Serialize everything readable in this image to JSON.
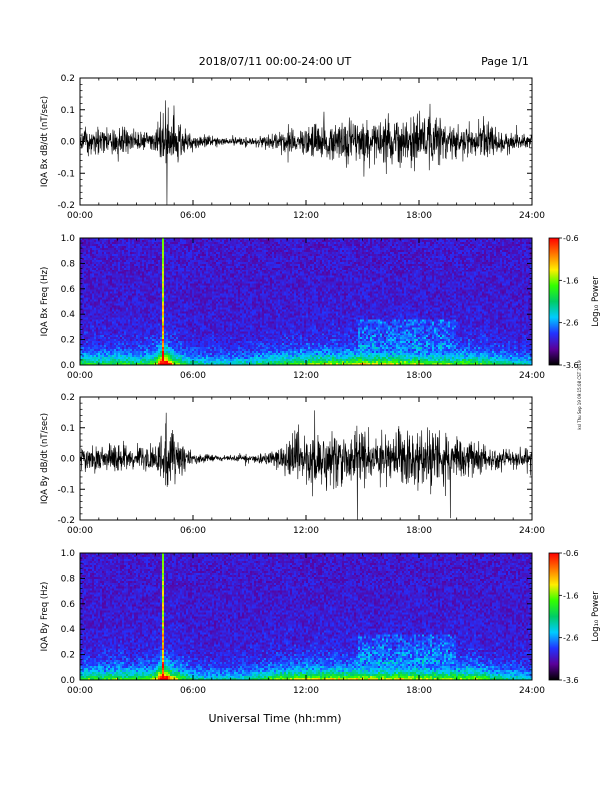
{
  "header": {
    "title": "2018/07/11  00:00-24:00 UT",
    "page": "Page 1/1"
  },
  "footer": {
    "xlabel": "Universal Time (hh:mm)",
    "timestamp": "ksl Thu Sep 19 09:15:08 CST 2019"
  },
  "colors": {
    "trace": "#000000",
    "spectrogram_background": "#000000",
    "colorbar_stops": [
      "#000000",
      "#5a0099",
      "#2233ff",
      "#00ccff",
      "#00cc66",
      "#33ff00",
      "#ffee00",
      "#ff7700",
      "#ff0000"
    ]
  },
  "chart_data": [
    {
      "type": "line",
      "id": "bx",
      "ylabel": "IQA Bx dB/dt (nT/sec)",
      "xlim": [
        0,
        24
      ],
      "ylim": [
        -0.2,
        0.2
      ],
      "x_ticks": [
        "00:00",
        "06:00",
        "12:00",
        "18:00",
        "24:00"
      ],
      "y_ticks": [
        "-0.2",
        "-0.1",
        "0.0",
        "0.1",
        "0.2"
      ],
      "envelope": {
        "x": [
          0,
          1,
          2,
          3,
          4,
          4.6,
          4.8,
          5.3,
          6,
          7,
          8,
          9,
          10,
          10.5,
          11,
          12,
          12.5,
          13,
          13.5,
          14,
          14.5,
          15,
          15.5,
          16,
          17,
          18,
          18.5,
          19,
          20,
          20.5,
          21,
          21.5,
          22,
          23,
          24
        ],
        "amplitude": [
          0.07,
          0.06,
          0.08,
          0.06,
          0.07,
          0.2,
          0.2,
          0.08,
          0.05,
          0.03,
          0.02,
          0.03,
          0.04,
          0.05,
          0.06,
          0.08,
          0.1,
          0.09,
          0.1,
          0.12,
          0.11,
          0.13,
          0.12,
          0.14,
          0.13,
          0.15,
          0.16,
          0.12,
          0.1,
          0.08,
          0.09,
          0.1,
          0.07,
          0.05,
          0.04
        ]
      }
    },
    {
      "type": "heatmap",
      "id": "bx-spec",
      "ylabel": "IQA Bx Freq (Hz)",
      "xlim": [
        0,
        24
      ],
      "ylim": [
        0,
        1
      ],
      "x_ticks": [
        "00:00",
        "06:00",
        "12:00",
        "18:00",
        "24:00"
      ],
      "y_ticks": [
        "0.0",
        "0.2",
        "0.4",
        "0.6",
        "0.8",
        "1.0"
      ],
      "colorbar": {
        "label": "Log₁₀ Power",
        "range": [
          -3.6,
          -0.6
        ],
        "ticks": [
          "-0.6",
          "-1.6",
          "-2.6",
          "-3.6"
        ]
      },
      "features": {
        "spike_time": 4.35,
        "activity": {
          "x": [
            0,
            1,
            2,
            3,
            4,
            4.6,
            5,
            6,
            7,
            8,
            9,
            10,
            11,
            12,
            13,
            14,
            15,
            16,
            17,
            18,
            19,
            20,
            21,
            22,
            23,
            24
          ],
          "value": [
            0.5,
            0.45,
            0.5,
            0.45,
            0.5,
            0.9,
            0.6,
            0.35,
            0.3,
            0.3,
            0.35,
            0.45,
            0.5,
            0.55,
            0.6,
            0.6,
            0.7,
            0.65,
            0.65,
            0.6,
            0.55,
            0.55,
            0.55,
            0.45,
            0.35,
            0.3
          ]
        }
      }
    },
    {
      "type": "line",
      "id": "by",
      "ylabel": "IQA By dB/dt (nT/sec)",
      "xlim": [
        0,
        24
      ],
      "ylim": [
        -0.2,
        0.2
      ],
      "x_ticks": [
        "00:00",
        "06:00",
        "12:00",
        "18:00",
        "24:00"
      ],
      "y_ticks": [
        "-0.2",
        "-0.1",
        "0.0",
        "0.1",
        "0.2"
      ],
      "envelope": {
        "x": [
          0,
          1,
          2,
          3,
          4,
          4.6,
          4.8,
          5.3,
          6,
          7,
          8,
          9,
          10,
          10.5,
          11,
          12,
          12.5,
          13,
          13.5,
          14,
          14.5,
          15,
          15.5,
          16,
          17,
          18,
          18.5,
          19,
          20,
          20.5,
          21,
          21.5,
          22,
          23,
          24
        ],
        "amplitude": [
          0.06,
          0.07,
          0.08,
          0.07,
          0.08,
          0.2,
          0.2,
          0.1,
          0.04,
          0.02,
          0.015,
          0.02,
          0.04,
          0.07,
          0.1,
          0.13,
          0.15,
          0.14,
          0.15,
          0.16,
          0.15,
          0.17,
          0.16,
          0.16,
          0.17,
          0.18,
          0.19,
          0.16,
          0.12,
          0.1,
          0.09,
          0.08,
          0.06,
          0.05,
          0.04
        ]
      }
    },
    {
      "type": "heatmap",
      "id": "by-spec",
      "ylabel": "IQA By Freq (Hz)",
      "xlim": [
        0,
        24
      ],
      "ylim": [
        0,
        1
      ],
      "x_ticks": [
        "00:00",
        "06:00",
        "12:00",
        "18:00",
        "24:00"
      ],
      "y_ticks": [
        "0.0",
        "0.2",
        "0.4",
        "0.6",
        "0.8",
        "1.0"
      ],
      "colorbar": {
        "label": "Log₁₀ Power",
        "range": [
          -3.6,
          -0.6
        ],
        "ticks": [
          "-0.6",
          "-1.6",
          "-2.6",
          "-3.6"
        ]
      },
      "features": {
        "spike_time": 4.35,
        "activity": {
          "x": [
            0,
            1,
            2,
            3,
            4,
            4.6,
            5,
            6,
            7,
            8,
            9,
            10,
            11,
            12,
            13,
            14,
            15,
            16,
            17,
            18,
            19,
            20,
            21,
            22,
            23,
            24
          ],
          "value": [
            0.5,
            0.5,
            0.55,
            0.5,
            0.55,
            0.9,
            0.65,
            0.35,
            0.3,
            0.3,
            0.35,
            0.5,
            0.6,
            0.65,
            0.65,
            0.65,
            0.7,
            0.65,
            0.65,
            0.65,
            0.6,
            0.6,
            0.6,
            0.45,
            0.35,
            0.3
          ]
        }
      }
    }
  ]
}
